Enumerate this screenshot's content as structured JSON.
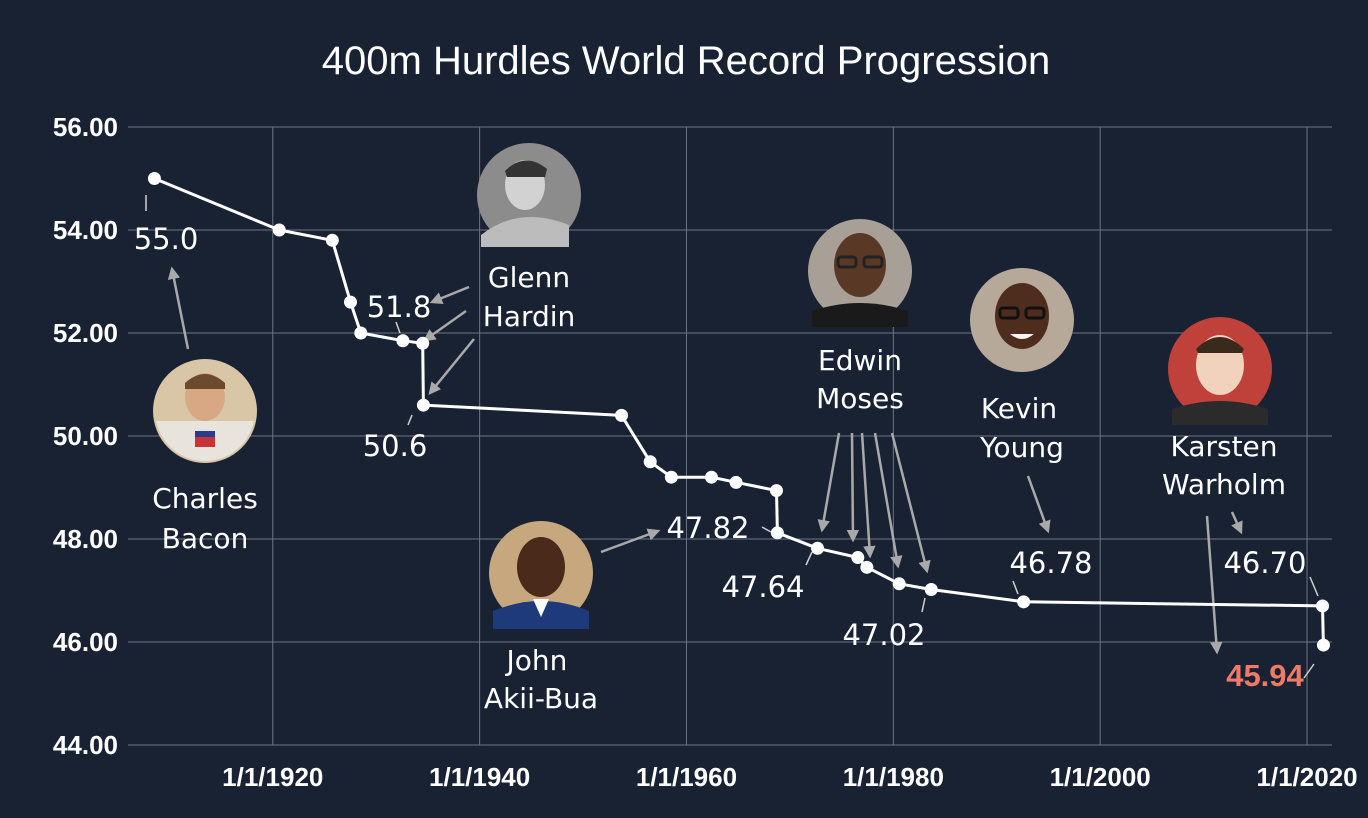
{
  "chart_data": {
    "type": "line",
    "title": "400m Hurdles World Record Progression",
    "xlabel": "",
    "ylabel": "",
    "x_ticks": [
      "1/1/1920",
      "1/1/1940",
      "1/1/1960",
      "1/1/1980",
      "1/1/2000",
      "1/1/2020"
    ],
    "y_ticks": [
      "56.00",
      "54.00",
      "52.00",
      "50.00",
      "48.00",
      "46.00",
      "44.00"
    ],
    "ylim": [
      44,
      56
    ],
    "xlim": [
      "1906-01-01",
      "2022-06-01"
    ],
    "grid": true,
    "line_color": "#ffffff",
    "highlight_color": "#f07a68",
    "series": [
      {
        "points": [
          {
            "date": "1908-07-22",
            "time": 55.0
          },
          {
            "date": "1920-08-16",
            "time": 54.0
          },
          {
            "date": "1925-10-04",
            "time": 53.8
          },
          {
            "date": "1927-07-07",
            "time": 52.6
          },
          {
            "date": "1928-07-06",
            "time": 52.0
          },
          {
            "date": "1932-08-01",
            "time": 51.85
          },
          {
            "date": "1934-06-30",
            "time": 51.8
          },
          {
            "date": "1934-07-26",
            "time": 50.6
          },
          {
            "date": "1953-09-20",
            "time": 50.4
          },
          {
            "date": "1956-06-29",
            "time": 49.5
          },
          {
            "date": "1958-07-16",
            "time": 49.2
          },
          {
            "date": "1962-06-02",
            "time": 49.2
          },
          {
            "date": "1964-10-16",
            "time": 49.1
          },
          {
            "date": "1968-09-13",
            "time": 48.94
          },
          {
            "date": "1968-10-15",
            "time": 48.12
          },
          {
            "date": "1972-09-02",
            "time": 47.82
          },
          {
            "date": "1976-07-25",
            "time": 47.64
          },
          {
            "date": "1977-06-11",
            "time": 47.45
          },
          {
            "date": "1980-07-26",
            "time": 47.13
          },
          {
            "date": "1983-08-31",
            "time": 47.02
          },
          {
            "date": "1992-08-06",
            "time": 46.78
          },
          {
            "date": "2021-07-01",
            "time": 46.7
          },
          {
            "date": "2021-08-03",
            "time": 45.94
          }
        ]
      }
    ],
    "annotations": [
      {
        "text": "55.0"
      },
      {
        "text": "51.8"
      },
      {
        "text": "50.6"
      },
      {
        "text": "47.82"
      },
      {
        "text": "47.64"
      },
      {
        "text": "47.02"
      },
      {
        "text": "46.78"
      },
      {
        "text": "46.70"
      },
      {
        "text": "45.94",
        "highlight": true
      }
    ],
    "athletes": [
      {
        "first": "Charles",
        "last": "Bacon"
      },
      {
        "first": "Glenn",
        "last": "Hardin"
      },
      {
        "first": "John",
        "last": "Akii-Bua"
      },
      {
        "first": "Edwin",
        "last": "Moses"
      },
      {
        "first": "Kevin",
        "last": "Young"
      },
      {
        "first": "Karsten",
        "last": "Warholm"
      }
    ]
  }
}
